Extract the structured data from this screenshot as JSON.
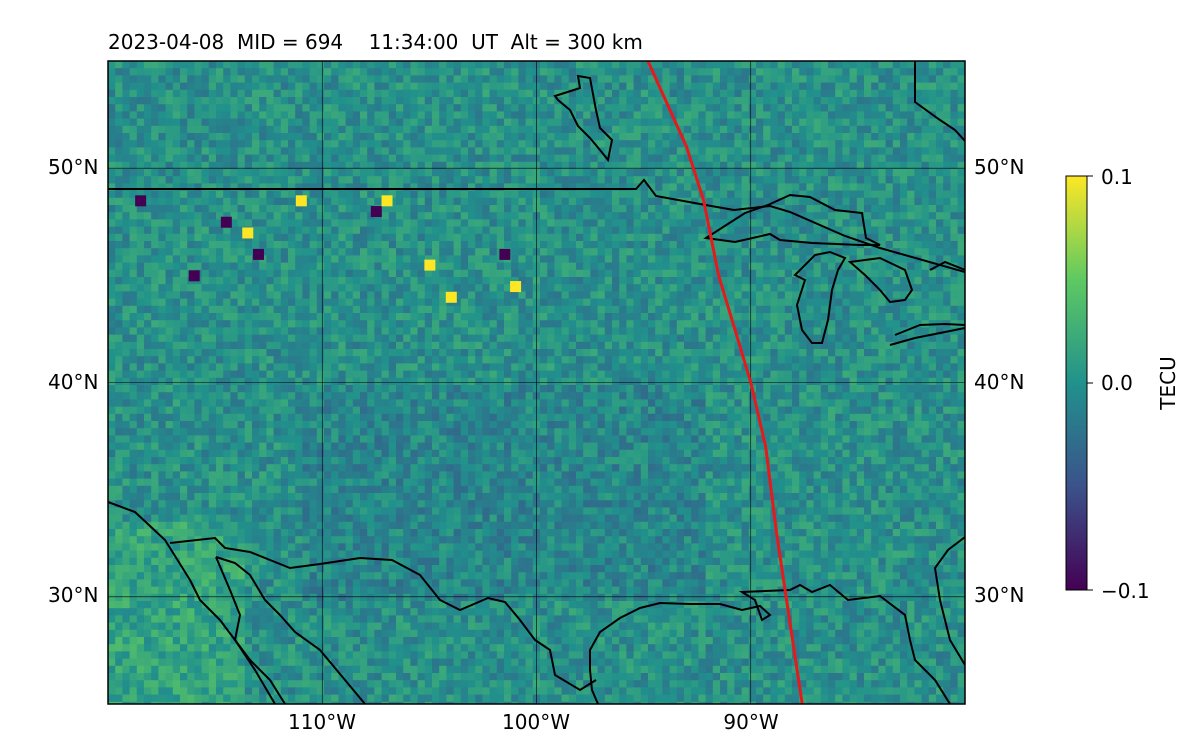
{
  "map": {
    "title": "2023-04-08  MID = 694    11:34:00  UT  Alt = 300 km",
    "date": "2023-04-08",
    "mid": 694,
    "time_ut": "11:34:00",
    "altitude_km": 300,
    "extent": {
      "lon_min": -120,
      "lon_max": -80,
      "lat_min": 25,
      "lat_max": 55
    },
    "latitude_labels": [
      "30°N",
      "40°N",
      "50°N"
    ],
    "longitude_labels": [
      "110°W",
      "100°W",
      "90°W"
    ],
    "gridlines": true,
    "colormap": "viridis",
    "track_color": "#e41a1c",
    "coastline_color": "#000000"
  },
  "colorbar": {
    "label": "TECU",
    "vmin": -0.1,
    "vmax": 0.1,
    "tick_labels": [
      "0.1",
      "0.0",
      "−0.1"
    ]
  },
  "chart_data": {
    "type": "heatmap",
    "variable": "TECU",
    "value_range": [
      -0.1,
      0.1
    ],
    "features": [
      {
        "lat": 47.5,
        "lon": -114.5,
        "value": -0.1
      },
      {
        "lat": 47.0,
        "lon": -113.5,
        "value": 0.1
      },
      {
        "lat": 48.5,
        "lon": -111.0,
        "value": 0.1
      },
      {
        "lat": 48.0,
        "lon": -107.5,
        "value": -0.1
      },
      {
        "lat": 48.5,
        "lon": -107.0,
        "value": 0.1
      },
      {
        "lat": 45.5,
        "lon": -105.0,
        "value": 0.1
      },
      {
        "lat": 44.0,
        "lon": -104.0,
        "value": 0.1
      },
      {
        "lat": 44.5,
        "lon": -101.0,
        "value": 0.1
      },
      {
        "lat": 46.0,
        "lon": -113.0,
        "value": -0.1
      },
      {
        "lat": 46.0,
        "lon": -101.5,
        "value": -0.1
      },
      {
        "lat": 48.5,
        "lon": -118.5,
        "value": -0.1
      },
      {
        "lat": 45.0,
        "lon": -116.0,
        "value": -0.1
      }
    ],
    "track": {
      "lon": [
        -94.8,
        -93.0,
        -92.2,
        -91.5,
        -90.0,
        -89.3,
        -88.8,
        -88.2,
        -87.6
      ],
      "lat": [
        55.0,
        51.0,
        48.5,
        45.0,
        40.0,
        37.0,
        33.0,
        29.0,
        25.0
      ]
    }
  }
}
